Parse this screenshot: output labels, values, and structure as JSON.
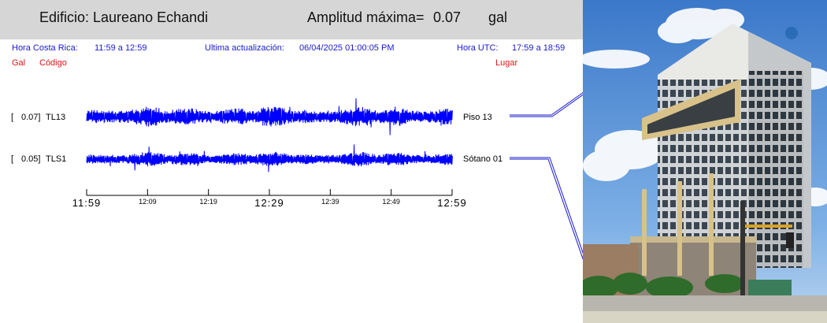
{
  "header": {
    "building": "Edificio: Laureano Echandi",
    "amplitude_label": "Amplitud máxima=",
    "amplitude_value": "0.07",
    "amplitude_unit": "gal"
  },
  "info": {
    "cr_time_label": "Hora Costa Rica:",
    "cr_time_value": "11:59 a 12:59",
    "update_label": "Ultima actualización:",
    "update_value": "06/04/2025 01:00:05 PM",
    "utc_label": "Hora UTC:",
    "utc_value": "17:59 a 18:59"
  },
  "columns": {
    "gal": "Gal",
    "code": "Código",
    "place": "Lugar"
  },
  "channels": [
    {
      "open": "[",
      "value": "0.07]",
      "code": "TL13",
      "place": "Piso 13",
      "amplitude": 0.07
    },
    {
      "open": "[",
      "value": "0.05]",
      "code": "TLS1",
      "place": "Sótano 01",
      "amplitude": 0.05
    }
  ],
  "time_axis": {
    "labels": [
      {
        "text": "11:59",
        "major": true
      },
      {
        "text": "12:09",
        "major": false
      },
      {
        "text": "12:19",
        "major": false
      },
      {
        "text": "12:29",
        "major": true
      },
      {
        "text": "12:39",
        "major": false
      },
      {
        "text": "12:49",
        "major": false
      },
      {
        "text": "12:59",
        "major": true
      }
    ]
  },
  "colors": {
    "trace": "#0000ff",
    "header_bg": "#d6d6d6",
    "info_blue": "#1a1acc",
    "info_red": "#e01414"
  }
}
